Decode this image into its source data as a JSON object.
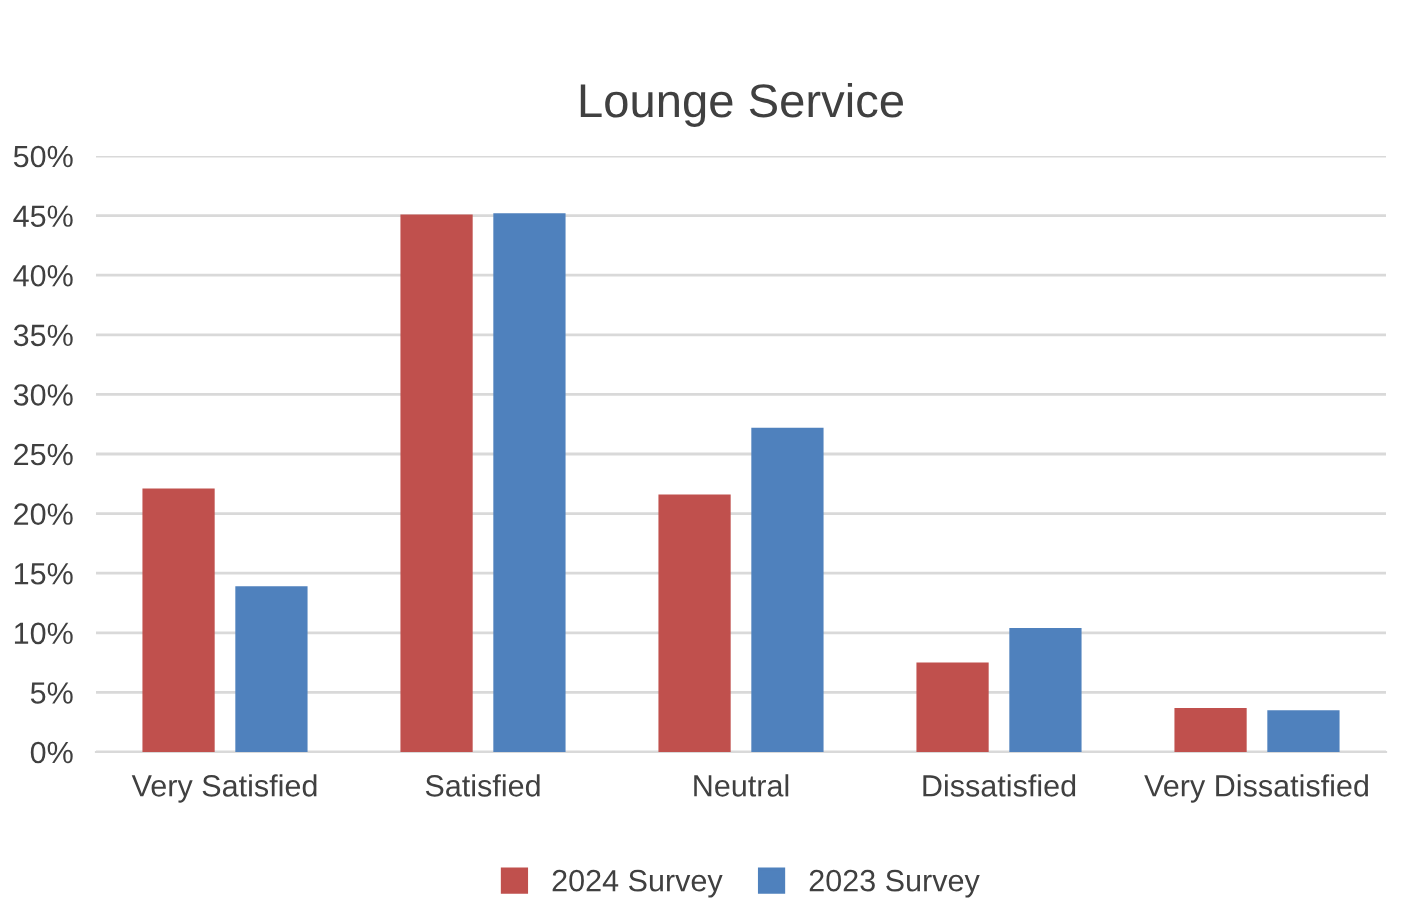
{
  "chart_data": {
    "type": "bar",
    "title": "Lounge Service",
    "categories": [
      "Very Satisfied",
      "Satisfied",
      "Neutral",
      "Dissatisfied",
      "Very Dissatisfied"
    ],
    "series": [
      {
        "name": "2024 Survey",
        "color": "#c0504d",
        "values": [
          22.1,
          45.1,
          21.6,
          7.5,
          3.7
        ]
      },
      {
        "name": "2023 Survey",
        "color": "#4f81bd",
        "values": [
          13.9,
          45.2,
          27.2,
          10.4,
          3.5
        ]
      }
    ],
    "ylim": [
      0,
      50
    ],
    "yticks": [
      {
        "value": 0,
        "label": "0%"
      },
      {
        "value": 5,
        "label": "5%"
      },
      {
        "value": 10,
        "label": "10%"
      },
      {
        "value": 15,
        "label": "15%"
      },
      {
        "value": 20,
        "label": "20%"
      },
      {
        "value": 25,
        "label": "25%"
      },
      {
        "value": 30,
        "label": "30%"
      },
      {
        "value": 35,
        "label": "35%"
      },
      {
        "value": 40,
        "label": "40%"
      },
      {
        "value": 45,
        "label": "45%"
      },
      {
        "value": 50,
        "label": "50%"
      }
    ],
    "grid": "y",
    "legend": "bottom"
  }
}
